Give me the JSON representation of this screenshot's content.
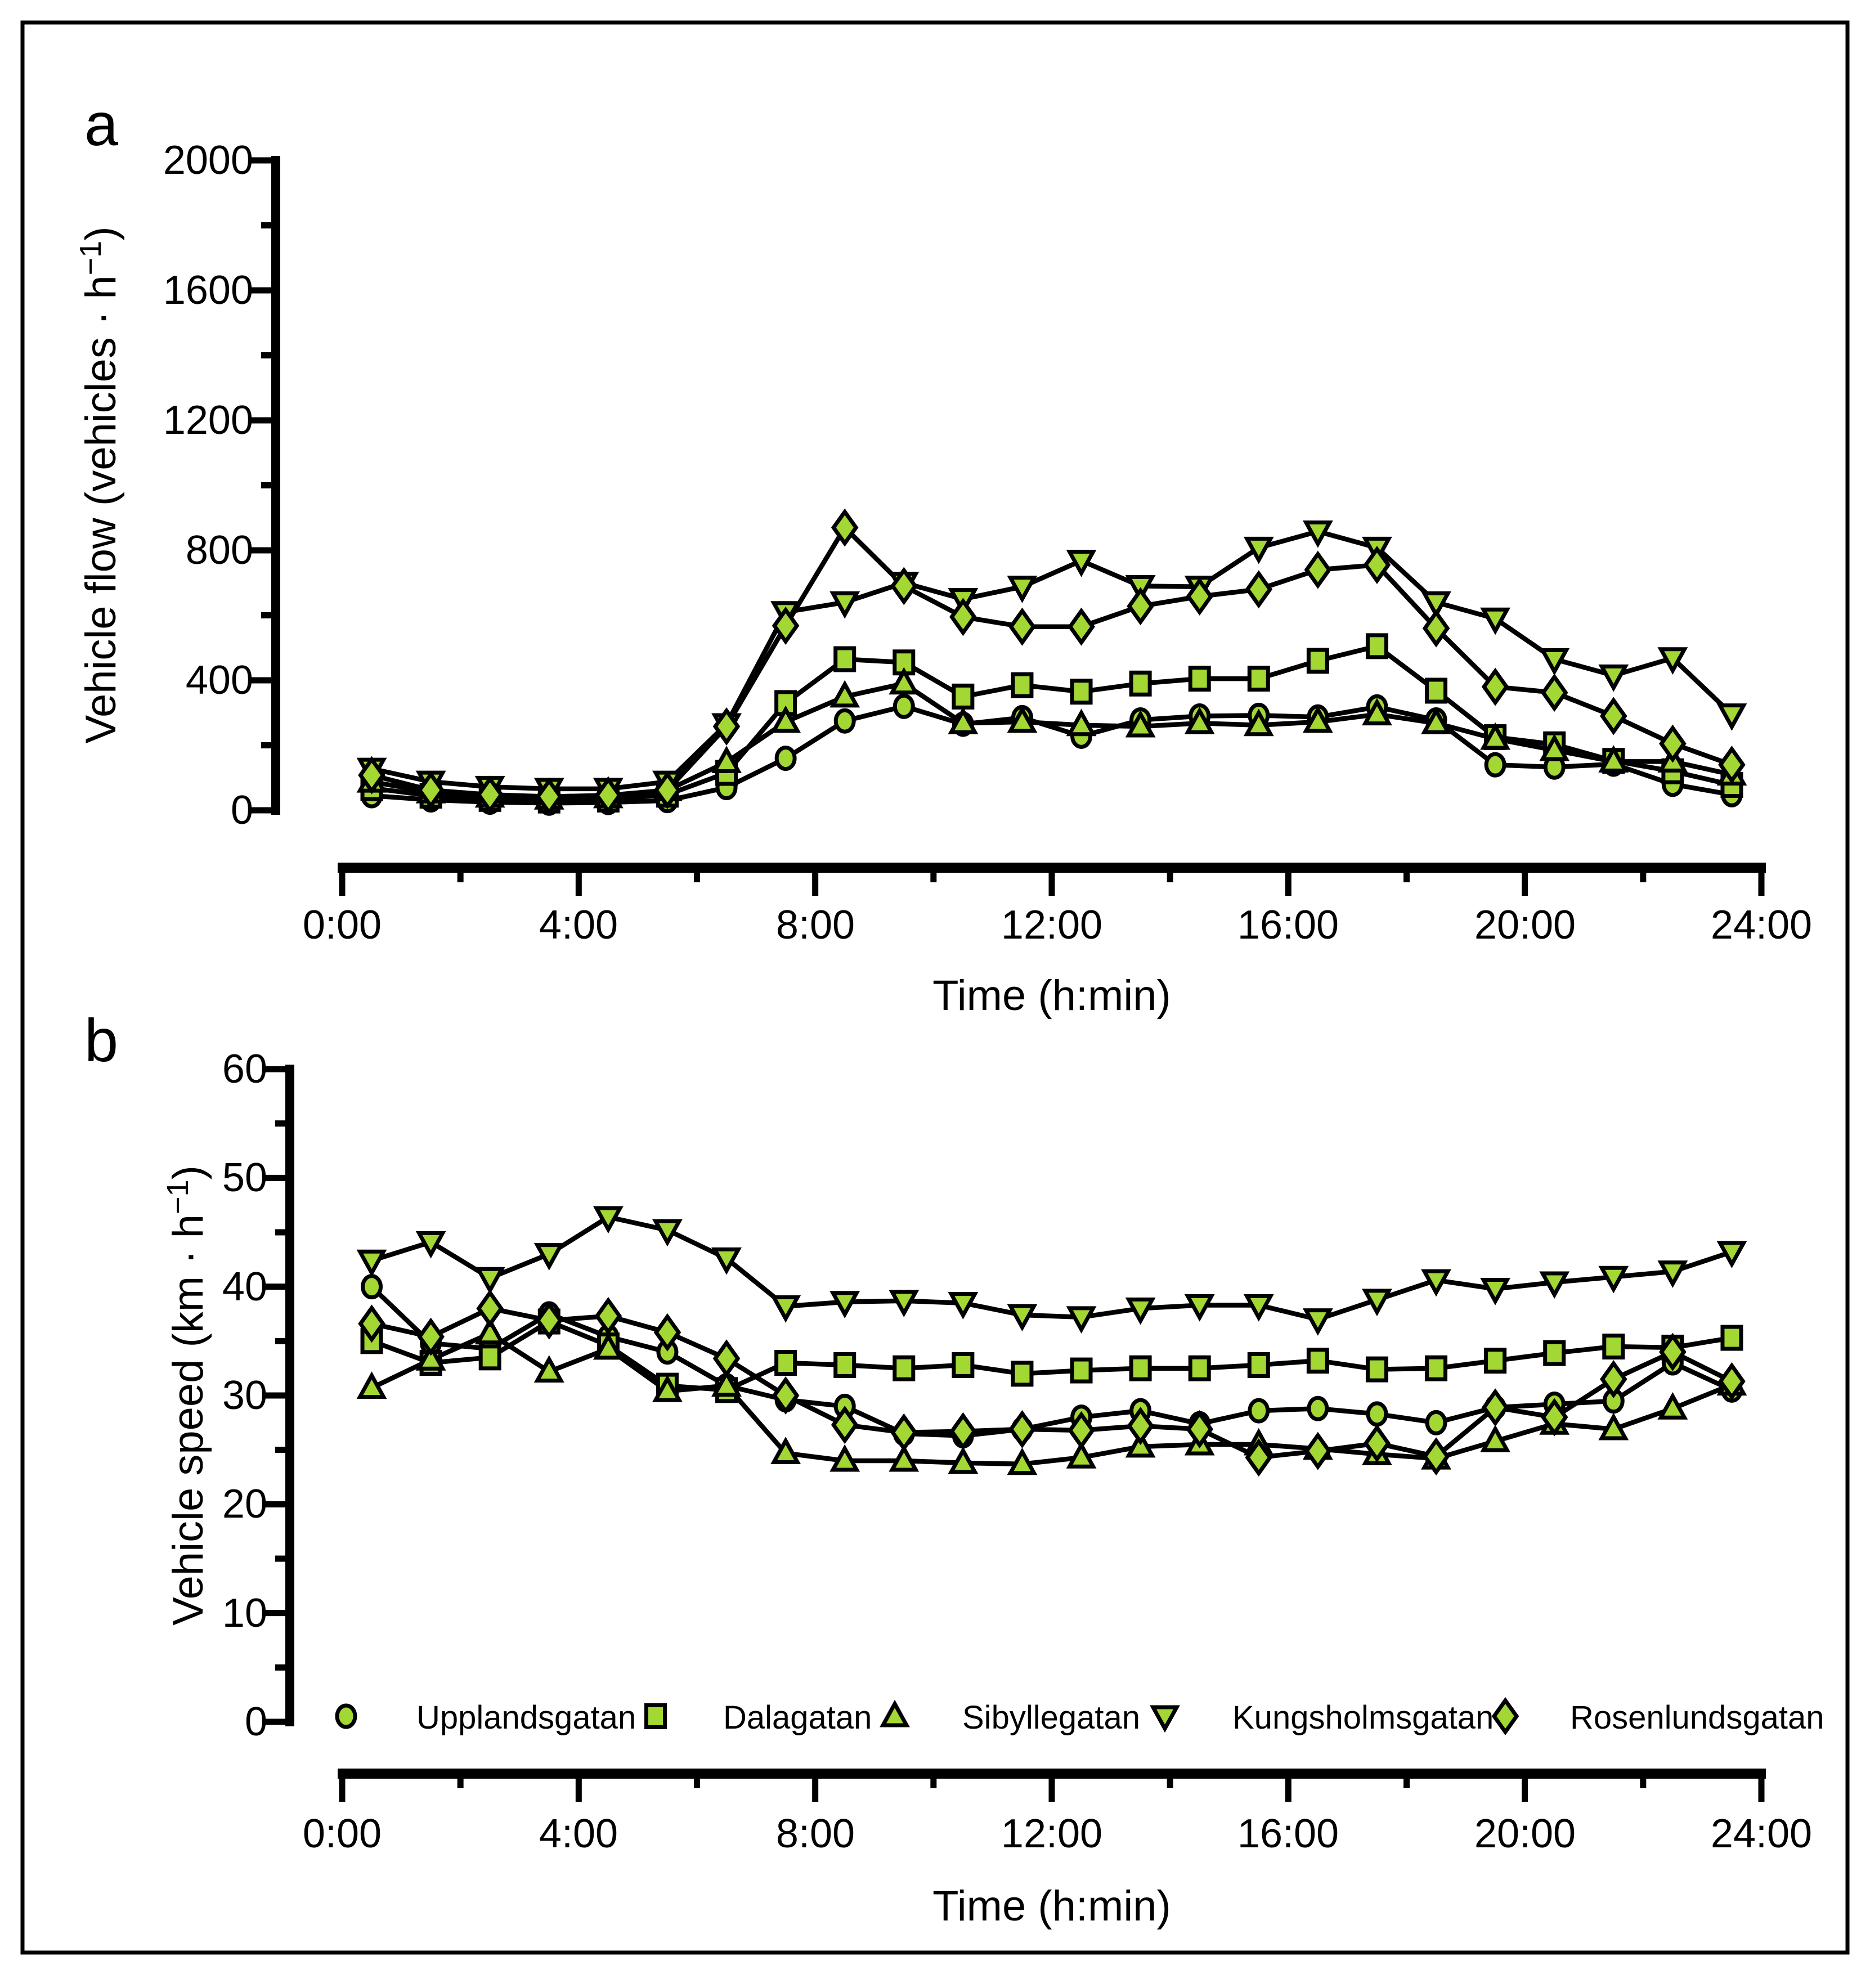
{
  "figure": {
    "panel_a_letter": "a",
    "panel_b_letter": "b",
    "marker_fill": "#A3D734",
    "line_color": "#000000",
    "frame_color": "#000000",
    "background": "#ffffff"
  },
  "legend": [
    {
      "label": "Upplandsgatan",
      "marker": "circle"
    },
    {
      "label": "Dalagatan",
      "marker": "square"
    },
    {
      "label": "Sibyllegatan",
      "marker": "triangle"
    },
    {
      "label": "Kungsholmsgatan",
      "marker": "triangle_down"
    },
    {
      "label": "Rosenlundsgatan",
      "marker": "diamond"
    }
  ],
  "chart_data": [
    {
      "type": "line",
      "panel": "a",
      "xlabel": "Time (h:min)",
      "ylabel_main": "Vehicle flow (vehicles · h",
      "ylabel_sup": "−1",
      "ylabel_close": ")",
      "ylim": [
        0,
        2000
      ],
      "yticks": [
        0,
        400,
        800,
        1200,
        1600,
        2000
      ],
      "ytick_labels": [
        "0",
        "400",
        "800",
        "1200",
        "1600",
        "2000"
      ],
      "yminor": [
        200,
        600,
        1000,
        1400,
        1800
      ],
      "xlim_hours": [
        0,
        24
      ],
      "xticks_hours": [
        0,
        4,
        8,
        12,
        16,
        20,
        24
      ],
      "xtick_labels": [
        "0:00",
        "4:00",
        "8:00",
        "12:00",
        "16:00",
        "20:00",
        "24:00"
      ],
      "xminor_hours": [
        2,
        6,
        10,
        14,
        18,
        22
      ],
      "x_hours": [
        0.5,
        1.5,
        2.5,
        3.5,
        4.5,
        5.5,
        6.5,
        7.5,
        8.5,
        9.5,
        10.5,
        11.5,
        12.5,
        13.5,
        14.5,
        15.5,
        16.5,
        17.5,
        18.5,
        19.5,
        20.5,
        21.5,
        22.5,
        23.5
      ],
      "grid": false,
      "series": [
        {
          "name": "Upplandsgatan",
          "marker": "circle",
          "values": [
            45,
            32,
            25,
            22,
            24,
            30,
            70,
            160,
            275,
            320,
            265,
            285,
            228,
            278,
            290,
            292,
            287,
            318,
            278,
            140,
            133,
            142,
            80,
            48
          ]
        },
        {
          "name": "Dalagatan",
          "marker": "square",
          "values": [
            68,
            45,
            35,
            30,
            33,
            48,
            115,
            330,
            465,
            455,
            350,
            385,
            365,
            390,
            405,
            405,
            460,
            505,
            368,
            225,
            203,
            152,
            120,
            78
          ]
        },
        {
          "name": "Sibyllegatan",
          "marker": "triangle",
          "values": [
            88,
            55,
            42,
            36,
            40,
            62,
            148,
            272,
            350,
            390,
            268,
            272,
            262,
            258,
            268,
            262,
            272,
            295,
            268,
            220,
            185,
            150,
            150,
            110
          ]
        },
        {
          "name": "Kungsholmsgatan",
          "marker": "triangle_down",
          "values": [
            128,
            88,
            72,
            66,
            66,
            88,
            265,
            610,
            640,
            700,
            650,
            688,
            768,
            690,
            688,
            808,
            858,
            808,
            640,
            590,
            465,
            415,
            468,
            295
          ]
        },
        {
          "name": "Rosenlundsgatan",
          "marker": "diamond",
          "values": [
            108,
            62,
            48,
            42,
            46,
            62,
            258,
            568,
            870,
            690,
            595,
            565,
            565,
            628,
            658,
            680,
            740,
            755,
            560,
            380,
            362,
            290,
            205,
            140
          ]
        }
      ]
    },
    {
      "type": "line",
      "panel": "b",
      "xlabel": "Time (h:min)",
      "ylabel_main": "Vehicle speed (km · h",
      "ylabel_sup": "−1",
      "ylabel_close": ")",
      "ylim": [
        0,
        60
      ],
      "yticks": [
        0,
        10,
        20,
        30,
        40,
        50,
        60
      ],
      "ytick_labels": [
        "0",
        "10",
        "20",
        "30",
        "40",
        "50",
        "60"
      ],
      "yminor": [
        5,
        15,
        25,
        35,
        45,
        55
      ],
      "xlim_hours": [
        0,
        24
      ],
      "xticks_hours": [
        0,
        4,
        8,
        12,
        16,
        20,
        24
      ],
      "xtick_labels": [
        "0:00",
        "4:00",
        "8:00",
        "12:00",
        "16:00",
        "20:00",
        "24:00"
      ],
      "xminor_hours": [
        2,
        6,
        10,
        14,
        18,
        22
      ],
      "x_hours": [
        0.5,
        1.5,
        2.5,
        3.5,
        4.5,
        5.5,
        6.5,
        7.5,
        8.5,
        9.5,
        10.5,
        11.5,
        12.5,
        13.5,
        14.5,
        15.5,
        16.5,
        17.5,
        18.5,
        19.5,
        20.5,
        21.5,
        22.5,
        23.5
      ],
      "grid": false,
      "series": [
        {
          "name": "Upplandsgatan",
          "marker": "circle",
          "values": [
            40.0,
            34.8,
            34.3,
            37.5,
            35.4,
            34.0,
            30.9,
            29.6,
            29.0,
            26.5,
            26.3,
            26.9,
            28.0,
            28.6,
            27.4,
            28.6,
            28.8,
            28.3,
            27.5,
            28.9,
            29.2,
            29.5,
            33.0,
            30.5
          ]
        },
        {
          "name": "Dalagatan",
          "marker": "square",
          "values": [
            35.0,
            33.0,
            33.5,
            36.8,
            34.6,
            30.9,
            30.5,
            33.0,
            32.8,
            32.5,
            32.8,
            32.0,
            32.3,
            32.5,
            32.5,
            32.8,
            33.2,
            32.4,
            32.5,
            33.2,
            33.9,
            34.5,
            34.4,
            35.3
          ]
        },
        {
          "name": "Sibyllegatan",
          "marker": "triangle",
          "values": [
            30.7,
            33.3,
            35.7,
            32.2,
            34.3,
            30.4,
            30.9,
            24.7,
            24.0,
            24.0,
            23.8,
            23.7,
            24.3,
            25.3,
            25.5,
            25.5,
            25.1,
            24.6,
            24.2,
            25.8,
            27.4,
            26.9,
            28.8,
            31.0
          ]
        },
        {
          "name": "Kungsholmsgatan",
          "marker": "triangle_down",
          "values": [
            42.4,
            44.1,
            40.8,
            43.0,
            46.4,
            45.2,
            42.6,
            38.2,
            38.6,
            38.7,
            38.5,
            37.4,
            37.2,
            38.0,
            38.3,
            38.3,
            37.0,
            38.8,
            40.6,
            39.8,
            40.4,
            40.9,
            41.4,
            43.2
          ]
        },
        {
          "name": "Rosenlundsgatan",
          "marker": "diamond",
          "values": [
            36.6,
            35.4,
            38.0,
            36.9,
            37.3,
            35.8,
            33.4,
            30.0,
            27.3,
            26.6,
            26.7,
            26.9,
            26.8,
            27.2,
            26.9,
            24.3,
            24.9,
            25.6,
            24.4,
            28.9,
            28.0,
            31.5,
            34.0,
            31.3
          ]
        }
      ]
    }
  ]
}
